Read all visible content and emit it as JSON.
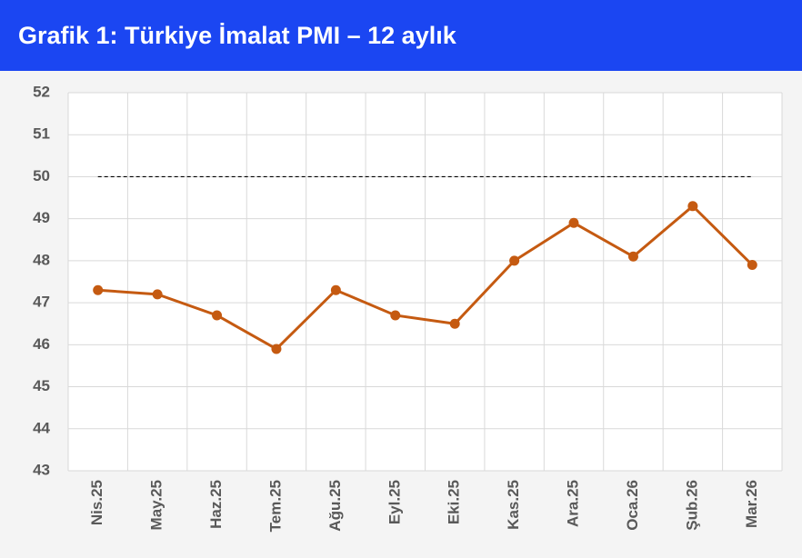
{
  "chart_data": {
    "type": "line",
    "title": "Grafik 1: Türkiye İmalat PMI – 12 aylık",
    "categories": [
      "Nis.25",
      "May.25",
      "Haz.25",
      "Tem.25",
      "Ağu.25",
      "Eyl.25",
      "Eki.25",
      "Kas.25",
      "Ara.25",
      "Oca.26",
      "Şub.26",
      "Mar.26"
    ],
    "series": [
      {
        "name": "PMI",
        "color": "#c55a11",
        "values": [
          47.3,
          47.2,
          46.7,
          45.9,
          47.3,
          46.7,
          46.5,
          48.0,
          48.9,
          48.1,
          49.3,
          47.9
        ]
      }
    ],
    "reference_line": 50,
    "ylim": [
      43,
      52
    ],
    "yticks": [
      43,
      44,
      45,
      46,
      47,
      48,
      49,
      50,
      51,
      52
    ],
    "grid": true
  }
}
